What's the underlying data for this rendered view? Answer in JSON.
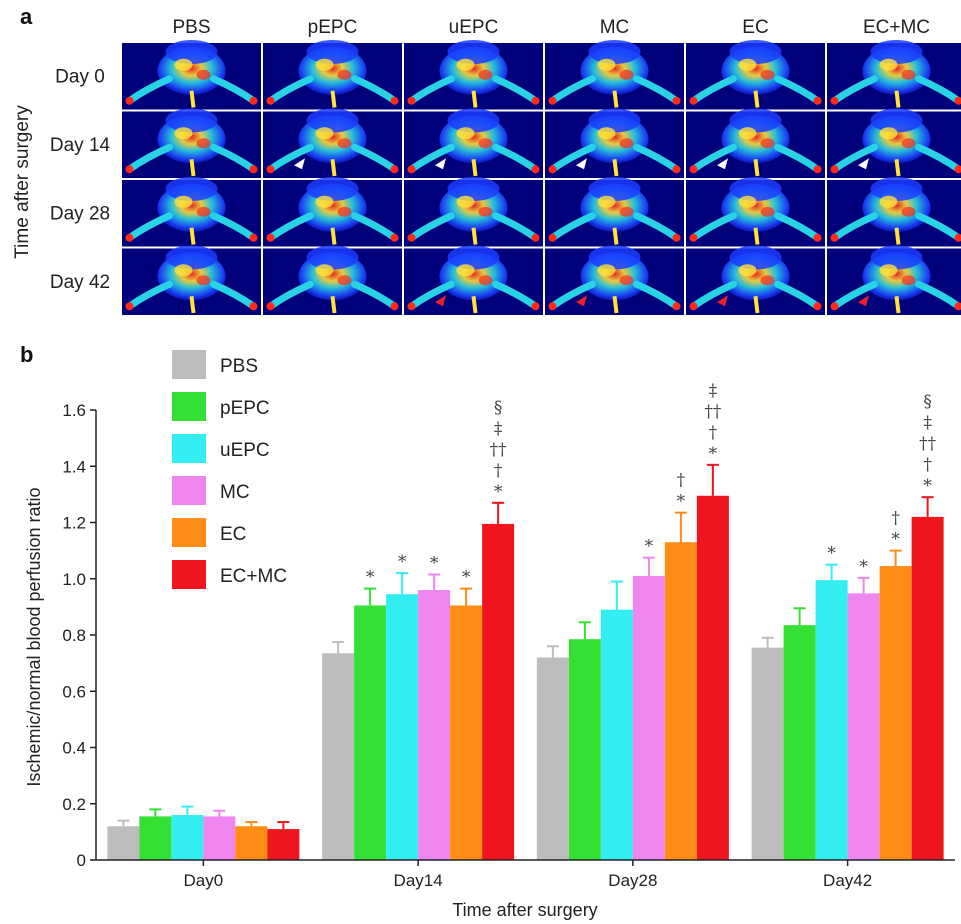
{
  "panel_a": {
    "letter": "a",
    "side_label": "Time after surgery",
    "columns": [
      "PBS",
      "pEPC",
      "uEPC",
      "MC",
      "EC",
      "EC+MC"
    ],
    "rows": [
      "Day 0",
      "Day 14",
      "Day 28",
      "Day 42"
    ],
    "white_arrow_row": 1,
    "white_arrow_columns": [
      1,
      2,
      3,
      4,
      5
    ],
    "red_arrow_row": 3,
    "red_arrow_columns": [
      2,
      3,
      4,
      5
    ],
    "arrow_colors": {
      "white": "#ffffff",
      "red": "#e8202a"
    },
    "scan_colors": {
      "background": "#00007a",
      "low": "#1a3cff",
      "mid": "#29d3e6",
      "high": "#ffe23a",
      "peak": "#ff2a1a"
    }
  },
  "chart_data": {
    "letter": "b",
    "type": "bar",
    "xlabel": "Time after surgery",
    "ylabel": "Ischemic/normal blood perfusion ratio",
    "ylim": [
      0,
      1.6
    ],
    "yticks": [
      "0",
      "0.2",
      "0.4",
      "0.6",
      "0.8",
      "1.0",
      "1.2",
      "1.4",
      "1.6"
    ],
    "grid": false,
    "legend_position": "top-left",
    "categories": [
      "Day0",
      "Day14",
      "Day28",
      "Day42"
    ],
    "series": [
      {
        "name": "PBS",
        "color": "#bdbdbd",
        "values": [
          0.12,
          0.735,
          0.72,
          0.755
        ],
        "errors": [
          0.02,
          0.04,
          0.04,
          0.035
        ],
        "marks": [
          "",
          "",
          "",
          ""
        ]
      },
      {
        "name": "pEPC",
        "color": "#33e033",
        "values": [
          0.155,
          0.905,
          0.785,
          0.835
        ],
        "errors": [
          0.025,
          0.06,
          0.06,
          0.06
        ],
        "marks": [
          "",
          "*",
          "",
          ""
        ]
      },
      {
        "name": "uEPC",
        "color": "#33eef0",
        "values": [
          0.16,
          0.945,
          0.89,
          0.995
        ],
        "errors": [
          0.03,
          0.075,
          0.1,
          0.055
        ],
        "marks": [
          "",
          "*",
          "",
          "*"
        ]
      },
      {
        "name": "MC",
        "color": "#ef86f0",
        "values": [
          0.155,
          0.96,
          1.01,
          0.948
        ],
        "errors": [
          0.02,
          0.055,
          0.065,
          0.055
        ],
        "marks": [
          "",
          "*",
          "*",
          "*"
        ]
      },
      {
        "name": "EC",
        "color": "#ff8c14",
        "values": [
          0.12,
          0.905,
          1.13,
          1.045
        ],
        "errors": [
          0.015,
          0.06,
          0.105,
          0.055
        ],
        "marks": [
          "",
          "*",
          "†\n*",
          "†\n*"
        ]
      },
      {
        "name": "EC+MC",
        "color": "#f0141e",
        "values": [
          0.11,
          1.195,
          1.295,
          1.22
        ],
        "errors": [
          0.025,
          0.075,
          0.11,
          0.07
        ],
        "marks": [
          "",
          "§\n‡\n††\n†\n*",
          "‡\n††\n†\n*",
          "§\n‡\n††\n†\n*"
        ]
      }
    ]
  }
}
